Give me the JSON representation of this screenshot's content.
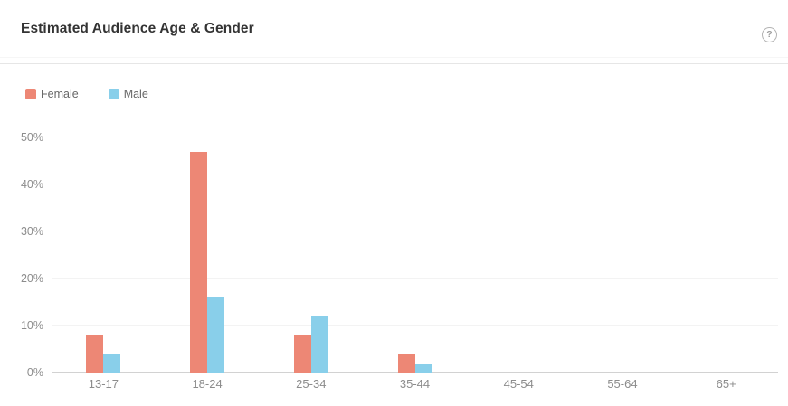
{
  "header": {
    "title": "Estimated Audience Age & Gender",
    "help_icon_glyph": "?"
  },
  "chart_data": {
    "type": "bar",
    "title": "Estimated Audience Age & Gender",
    "categories": [
      "13-17",
      "18-24",
      "25-34",
      "35-44",
      "45-54",
      "55-64",
      "65+"
    ],
    "series": [
      {
        "name": "Female",
        "color": "#ED8775",
        "values": [
          8,
          47,
          8,
          4,
          0,
          0,
          0
        ]
      },
      {
        "name": "Male",
        "color": "#89CFEA",
        "values": [
          4,
          16,
          12,
          2,
          0,
          0,
          0
        ]
      }
    ],
    "xlabel": "",
    "ylabel": "",
    "y_ticks": [
      "0%",
      "10%",
      "20%",
      "30%",
      "40%",
      "50%"
    ],
    "ylim": [
      0,
      50
    ],
    "grid": true,
    "legend_position": "top-left",
    "value_unit": "percent"
  }
}
